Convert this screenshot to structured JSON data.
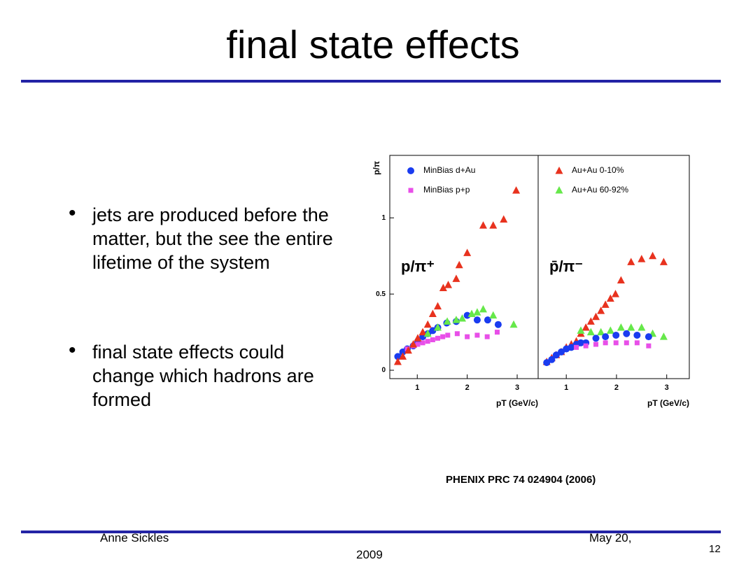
{
  "slide": {
    "title": "final state effects",
    "bullets": [
      "jets are produced before the matter, but the see the entire lifetime of the system",
      "final state effects could change which hadrons are formed"
    ],
    "citation": "PHENIX PRC 74 024904 (2006)",
    "footer": {
      "author": "Anne Sickles",
      "date": [
        "May 20,",
        "2009"
      ],
      "page": "12"
    }
  },
  "chart_data": [
    {
      "type": "scatter",
      "ylabel": "p/π",
      "xlabel": "pT (GeV/c)",
      "annotation": "p/π⁺",
      "xlim": [
        0.45,
        3.42
      ],
      "xticks": [
        1,
        2,
        3
      ],
      "ylim": [
        -0.055,
        1.41
      ],
      "yticks": [
        0,
        0.5,
        1
      ],
      "series": [
        {
          "name": "MinBias d+Au",
          "color": "#1a3cf0",
          "marker": "circle",
          "x": [
            0.61,
            0.71,
            0.8,
            0.92,
            1.01,
            1.11,
            1.21,
            1.31,
            1.41,
            1.59,
            1.78,
            2.0,
            2.2,
            2.41,
            2.62
          ],
          "values": [
            0.09,
            0.12,
            0.14,
            0.16,
            0.19,
            0.22,
            0.24,
            0.26,
            0.28,
            0.31,
            0.32,
            0.36,
            0.33,
            0.33,
            0.3
          ]
        },
        {
          "name": "MinBias p+p",
          "color": "#e84fe8",
          "marker": "square",
          "x": [
            0.8,
            0.92,
            1.01,
            1.11,
            1.21,
            1.31,
            1.41,
            1.51,
            1.61,
            1.8,
            2.0,
            2.2,
            2.4,
            2.6
          ],
          "values": [
            0.14,
            0.16,
            0.17,
            0.18,
            0.19,
            0.2,
            0.21,
            0.22,
            0.23,
            0.24,
            0.22,
            0.23,
            0.22,
            0.25
          ]
        },
        {
          "color": "#e8321e",
          "marker": "triangle",
          "x": [
            0.61,
            0.71,
            0.82,
            0.92,
            1.01,
            1.11,
            1.21,
            1.31,
            1.41,
            1.52,
            1.62,
            1.78,
            1.84,
            2.0,
            2.32,
            2.52,
            2.73,
            2.98
          ],
          "values": [
            0.055,
            0.09,
            0.13,
            0.17,
            0.21,
            0.25,
            0.3,
            0.37,
            0.42,
            0.54,
            0.56,
            0.6,
            0.69,
            0.77,
            0.95,
            0.95,
            0.99,
            1.18
          ]
        },
        {
          "color": "#66e84a",
          "marker": "triangle",
          "x": [
            1.21,
            1.41,
            1.6,
            1.78,
            1.9,
            2.09,
            2.2,
            2.32,
            2.52,
            2.93
          ],
          "values": [
            0.24,
            0.28,
            0.32,
            0.33,
            0.34,
            0.37,
            0.38,
            0.4,
            0.36,
            0.3
          ]
        }
      ]
    },
    {
      "type": "scatter",
      "xlabel": "pT (GeV/c)",
      "annotation": "p̄/π⁻",
      "xlim": [
        0.44,
        3.45
      ],
      "xticks": [
        1,
        2,
        3
      ],
      "ylim": [
        -0.055,
        1.41
      ],
      "series": [
        {
          "name": "Au+Au  0-10%",
          "color": "#e8321e",
          "marker": "triangle",
          "x": [
            0.61,
            0.71,
            0.8,
            0.9,
            1.0,
            1.1,
            1.2,
            1.29,
            1.39,
            1.49,
            1.59,
            1.69,
            1.78,
            1.88,
            1.98,
            2.09,
            2.29,
            2.5,
            2.72,
            2.94
          ],
          "values": [
            0.055,
            0.08,
            0.1,
            0.12,
            0.15,
            0.17,
            0.19,
            0.24,
            0.28,
            0.32,
            0.35,
            0.39,
            0.43,
            0.47,
            0.5,
            0.59,
            0.71,
            0.73,
            0.75,
            0.71
          ]
        },
        {
          "name": "Au+Au 60-92%",
          "color": "#66e84a",
          "marker": "triangle",
          "x": [
            1.29,
            1.49,
            1.69,
            1.88,
            2.09,
            2.29,
            2.5,
            2.72,
            2.94
          ],
          "values": [
            0.26,
            0.25,
            0.25,
            0.26,
            0.28,
            0.28,
            0.28,
            0.24,
            0.22
          ]
        },
        {
          "color": "#1a3cf0",
          "marker": "circle",
          "x": [
            0.61,
            0.71,
            0.8,
            0.9,
            1.0,
            1.1,
            1.2,
            1.29,
            1.39,
            1.59,
            1.78,
            1.99,
            2.2,
            2.41,
            2.64
          ],
          "values": [
            0.05,
            0.07,
            0.1,
            0.12,
            0.14,
            0.15,
            0.17,
            0.18,
            0.18,
            0.21,
            0.22,
            0.23,
            0.24,
            0.23,
            0.22
          ]
        },
        {
          "color": "#e84fe8",
          "marker": "square",
          "x": [
            1.2,
            1.39,
            1.59,
            1.78,
            1.99,
            2.2,
            2.41,
            2.64
          ],
          "values": [
            0.15,
            0.16,
            0.17,
            0.18,
            0.18,
            0.18,
            0.18,
            0.16
          ]
        }
      ]
    }
  ]
}
